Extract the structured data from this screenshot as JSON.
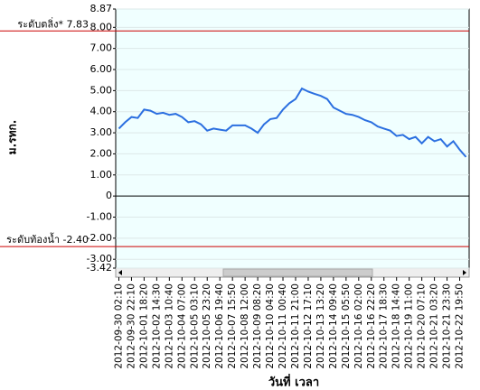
{
  "chart_data": {
    "type": "line",
    "y_label": "ม.รทก.",
    "x_label": "วันที่ เวลา",
    "categories": [
      "2012-09-30 02:10",
      null,
      "2012-09-30 22:10",
      null,
      "2012-10-01 18:20",
      null,
      "2012-10-02 14:30",
      null,
      "2012-10-03 10:40",
      null,
      "2012-10-04 07:00",
      null,
      "2012-10-05 03:10",
      null,
      "2012-10-05 23:20",
      null,
      "2012-10-06 19:40",
      null,
      "2012-10-07 15:50",
      null,
      "2012-10-08 12:00",
      null,
      "2012-10-09 08:20",
      null,
      "2012-10-10 04:30",
      null,
      "2012-10-11 00:40",
      null,
      "2012-10-11 21:00",
      null,
      "2012-10-12 17:10",
      null,
      "2012-10-13 13:20",
      null,
      "2012-10-14 09:40",
      null,
      "2012-10-15 05:50",
      null,
      "2012-10-16 02:00",
      null,
      "2012-10-16 22:20",
      null,
      "2012-10-17 18:30",
      null,
      "2012-10-18 14:40",
      null,
      "2012-10-19 11:00",
      null,
      "2012-10-20 07:10",
      null,
      "2012-10-21 03:20",
      null,
      "2012-10-21 23:30",
      null,
      "2012-10-22 19:50",
      null
    ],
    "series": [
      {
        "color": "#2b6fe0",
        "values": [
          3.2,
          3.5,
          3.75,
          3.7,
          4.1,
          4.05,
          3.9,
          3.95,
          3.85,
          3.9,
          3.75,
          3.5,
          3.55,
          3.4,
          3.1,
          3.2,
          3.15,
          3.1,
          3.35,
          3.35,
          3.35,
          3.2,
          3.0,
          3.4,
          3.65,
          3.7,
          4.1,
          4.4,
          4.6,
          5.1,
          4.95,
          4.85,
          4.75,
          4.6,
          4.2,
          4.05,
          3.9,
          3.85,
          3.75,
          3.6,
          3.5,
          3.3,
          3.2,
          3.1,
          2.85,
          2.9,
          2.7,
          2.8,
          2.5,
          2.8,
          2.6,
          2.7,
          2.35,
          2.6,
          2.2,
          1.85
        ]
      }
    ],
    "ylim": [
      -3.42,
      8.87
    ],
    "yticks": [
      8.87,
      {
        "value": 8,
        "label": "8.00"
      },
      {
        "value": 7,
        "label": "7.00"
      },
      {
        "value": 6,
        "label": "6.00"
      },
      {
        "value": 5,
        "label": "5.00"
      },
      {
        "value": 4,
        "label": "4.00"
      },
      {
        "value": 3,
        "label": "3.00"
      },
      {
        "value": 2,
        "label": "2.00"
      },
      {
        "value": 1,
        "label": "1.00"
      },
      0,
      {
        "value": -1,
        "label": "-1.00"
      },
      {
        "value": -2,
        "label": "-2.00"
      },
      {
        "value": -3,
        "label": "-3.00"
      },
      -3.42
    ],
    "grid": true,
    "annotations": [
      {
        "text": "ระดับตลิ่ง* 7.83",
        "value": 7.83,
        "color": "#cc0000"
      },
      {
        "text": "ระดับท้องน้ำ -2.40",
        "value": -2.4,
        "color": "#cc0000"
      }
    ]
  }
}
